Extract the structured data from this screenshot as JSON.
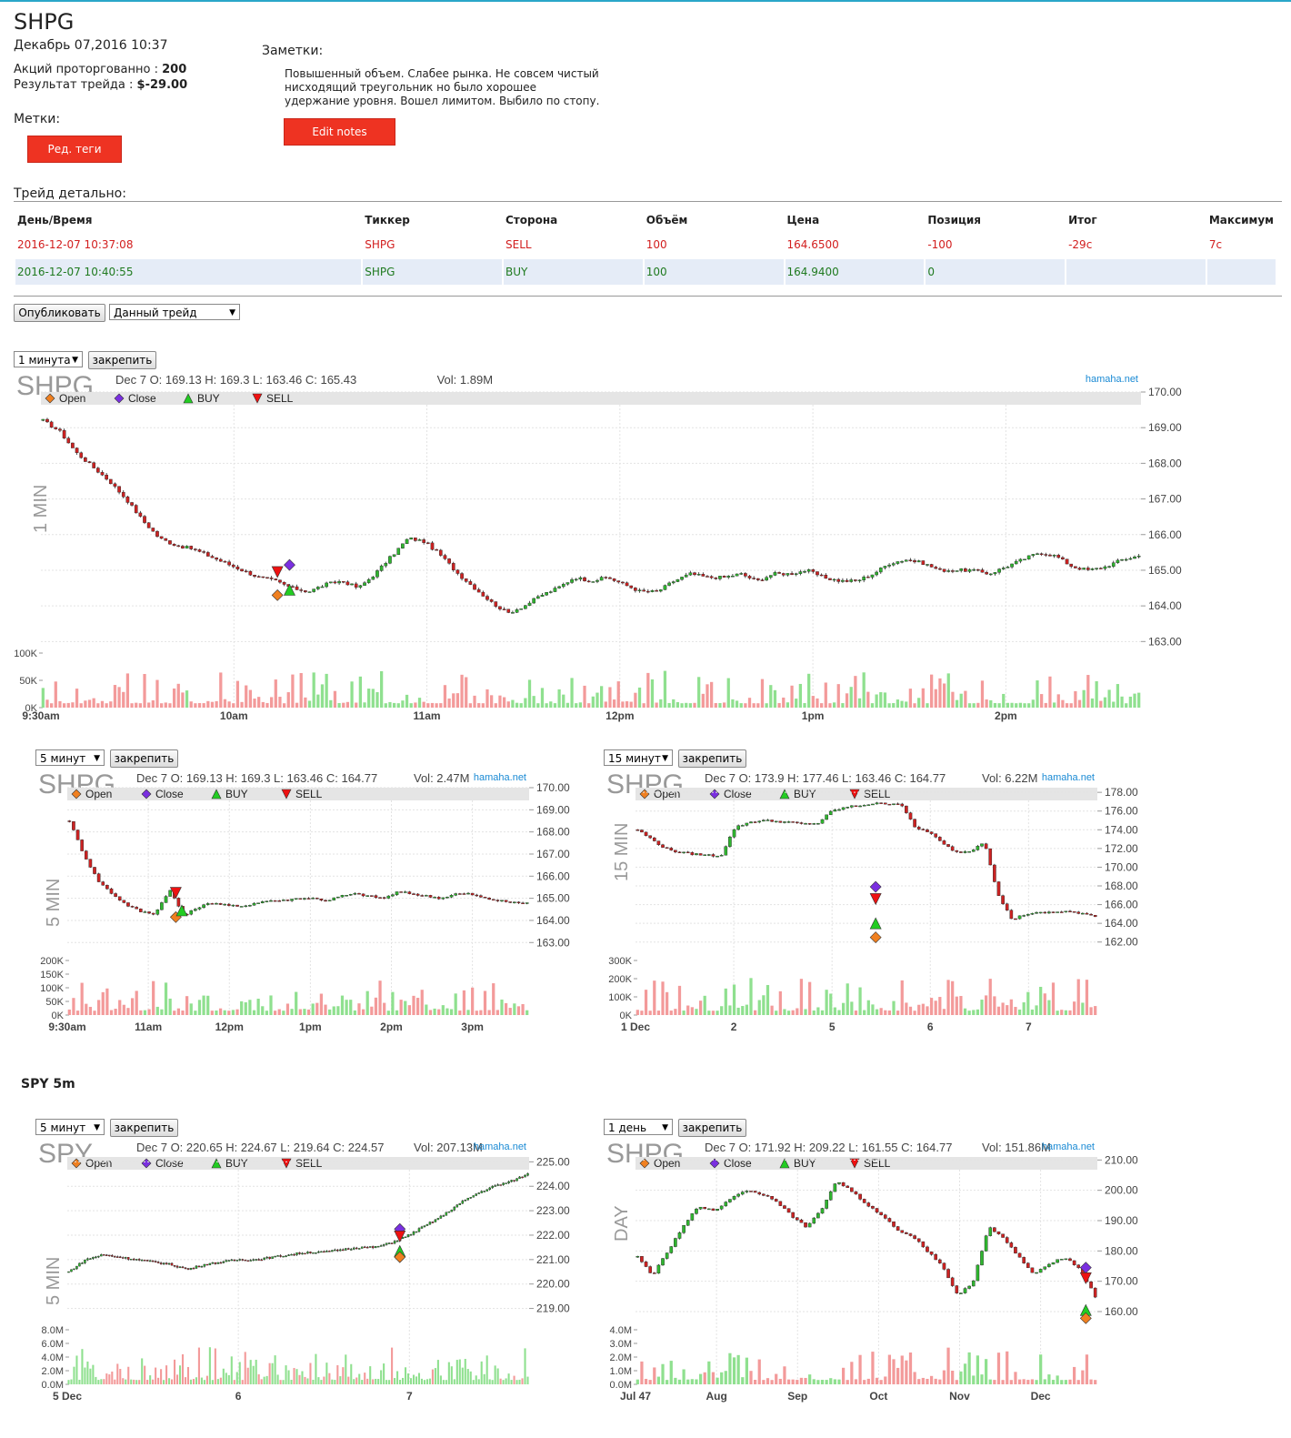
{
  "header": {
    "ticker": "SHPG",
    "datetime": "Декабрь 07,2016 10:37",
    "shares_label": "Акций проторгованно :",
    "shares_value": "200",
    "result_label": "Результат трейда :",
    "result_value": "$-29.00",
    "tags_label": "Метки:",
    "edit_tags_button": "Ред. теги",
    "notes_label": "Заметки:",
    "notes_text": "Повышенный объем. Слабее рынка. Не совсем чистый нисходящий треугольник но было хорошее удержание уровня. Вошел лимитом. Выбило по стопу.",
    "edit_notes_button": "Edit notes"
  },
  "trade_details": {
    "title": "Трейд детально:",
    "columns": [
      "День/Время",
      "Тиккер",
      "Сторона",
      "Объём",
      "Цена",
      "Позиция",
      "Итог",
      "Максимум"
    ],
    "rows": [
      [
        "2016-12-07 10:37:08",
        "SHPG",
        "SELL",
        "100",
        "164.6500",
        "-100",
        "-29c",
        "7c"
      ],
      [
        "2016-12-07 10:40:55",
        "SHPG",
        "BUY",
        "100",
        "164.9400",
        "0",
        "",
        ""
      ]
    ]
  },
  "controls": {
    "publish_button": "Опубликовать",
    "scope_select": "Данный трейд",
    "pin_button": "закрепить"
  },
  "legend": [
    "Open",
    "Close",
    "BUY",
    "SELL"
  ],
  "brand": "hamaha.net",
  "spy_section_title": "SPY 5m",
  "colors": {
    "up": "#2fb52f",
    "down": "#cc2222",
    "vol_up": "#8fe08f",
    "vol_down": "#f39a9a",
    "open_marker": "#f08020",
    "close_marker": "#7a2fe0",
    "buy_marker": "#22cc22",
    "sell_marker": "#ee1111",
    "button_red": "#ee3322"
  },
  "charts": [
    {
      "id": "shpg-1m",
      "interval_select": "1 минута",
      "symbol": "SHPG",
      "info": "Dec 7 O: 169.13 H: 169.3 L: 163.46 C: 165.43",
      "vol": "Vol: 1.89M",
      "side_label": "1 MIN",
      "chart_data": {
        "type": "candlestick",
        "y_ticks": [
          "170.00",
          "169.00",
          "168.00",
          "167.00",
          "166.00",
          "165.00",
          "164.00",
          "163.00"
        ],
        "ylim": [
          162.6,
          170.0
        ],
        "x_labels": [
          "9:30am",
          "10am",
          "11am",
          "12pm",
          "1pm",
          "2pm"
        ],
        "vol_ticks": [
          "100K",
          "50K",
          "0K"
        ],
        "close_path": [
          169.2,
          168.9,
          168.3,
          167.9,
          167.5,
          167.0,
          166.4,
          165.9,
          165.7,
          165.6,
          165.4,
          165.2,
          165.0,
          164.8,
          164.7,
          164.5,
          164.4,
          164.6,
          164.7,
          164.5,
          164.9,
          165.4,
          165.9,
          165.8,
          165.4,
          164.9,
          164.5,
          164.1,
          163.8,
          164.0,
          164.3,
          164.5,
          164.8,
          164.7,
          164.8,
          164.6,
          164.4,
          164.4,
          164.7,
          164.9,
          164.8,
          164.8,
          164.9,
          164.7,
          164.9,
          164.9,
          165.0,
          164.8,
          164.7,
          164.7,
          164.9,
          165.2,
          165.3,
          165.2,
          165.0,
          165.0,
          165.0,
          164.9,
          165.1,
          165.3,
          165.5,
          165.4,
          165.1,
          165.0,
          165.1,
          165.3,
          165.4
        ],
        "markers": [
          {
            "type": "open",
            "x_frac": 0.215,
            "price": 164.3
          },
          {
            "type": "sell",
            "x_frac": 0.215,
            "price": 164.95
          },
          {
            "type": "close",
            "x_frac": 0.226,
            "price": 165.15
          },
          {
            "type": "buy",
            "x_frac": 0.226,
            "price": 164.45
          }
        ]
      }
    },
    {
      "id": "shpg-5m",
      "interval_select": "5 минут",
      "symbol": "SHPG",
      "info": "Dec 7 O: 169.13 H: 169.3 L: 163.46 C: 164.77",
      "vol": "Vol: 2.47M",
      "side_label": "5 MIN",
      "chart_data": {
        "type": "candlestick",
        "y_ticks": [
          "170.00",
          "169.00",
          "168.00",
          "167.00",
          "166.00",
          "165.00",
          "164.00",
          "163.00"
        ],
        "ylim": [
          162.6,
          170.0
        ],
        "x_labels": [
          "9:30am",
          "11am",
          "12pm",
          "1pm",
          "2pm",
          "3pm"
        ],
        "vol_ticks": [
          "200K",
          "150K",
          "100K",
          "50K",
          "0K"
        ],
        "close_path": [
          168.5,
          167.0,
          165.8,
          165.2,
          164.7,
          164.4,
          164.3,
          165.4,
          164.2,
          164.6,
          164.8,
          164.7,
          164.6,
          164.8,
          164.9,
          164.9,
          165.0,
          165.0,
          164.9,
          165.1,
          165.2,
          165.1,
          165.0,
          165.3,
          165.2,
          165.1,
          165.0,
          165.2,
          165.2,
          165.0,
          164.9,
          164.8,
          164.8
        ],
        "markers": [
          {
            "type": "open",
            "x_frac": 0.235,
            "price": 164.15
          },
          {
            "type": "sell",
            "x_frac": 0.235,
            "price": 165.25
          },
          {
            "type": "buy",
            "x_frac": 0.248,
            "price": 164.45
          }
        ]
      }
    },
    {
      "id": "shpg-15m",
      "interval_select": "15 минут",
      "symbol": "SHPG",
      "info": "Dec 7 O: 173.9 H: 177.46 L: 163.46 C: 164.77",
      "vol": "Vol: 6.22M",
      "side_label": "15 MIN",
      "chart_data": {
        "type": "candlestick",
        "y_ticks": [
          "178.00",
          "176.00",
          "174.00",
          "172.00",
          "170.00",
          "168.00",
          "166.00",
          "164.00",
          "162.00"
        ],
        "ylim": [
          161.0,
          178.5
        ],
        "x_labels": [
          "1 Dec",
          "2",
          "5",
          "6",
          "7"
        ],
        "vol_ticks": [
          "300K",
          "200K",
          "100K",
          "0K"
        ],
        "close_path": [
          174.0,
          173.0,
          172.0,
          171.6,
          171.4,
          171.3,
          171.2,
          174.2,
          174.8,
          175.0,
          174.9,
          174.8,
          174.6,
          174.7,
          176.0,
          176.4,
          176.6,
          176.8,
          176.8,
          176.8,
          174.2,
          173.8,
          172.5,
          171.6,
          171.7,
          172.8,
          167.0,
          164.4,
          165.0,
          165.1,
          165.2,
          165.3,
          165.0,
          164.8
        ],
        "markers": [
          {
            "type": "close",
            "x_frac": 0.52,
            "price": 167.9
          },
          {
            "type": "sell",
            "x_frac": 0.52,
            "price": 166.6
          },
          {
            "type": "buy",
            "x_frac": 0.52,
            "price": 164.0
          },
          {
            "type": "open",
            "x_frac": 0.52,
            "price": 162.5
          }
        ]
      }
    },
    {
      "id": "spy-5m",
      "interval_select": "5 минут",
      "symbol": "SPY",
      "info": "Dec 7 O: 220.65 H: 224.67 L: 219.64 C: 224.57",
      "vol": "Vol: 207.13M",
      "side_label": "5 MIN",
      "chart_data": {
        "type": "candlestick",
        "y_ticks": [
          "225.00",
          "224.00",
          "223.00",
          "222.00",
          "221.00",
          "220.00",
          "219.00"
        ],
        "ylim": [
          218.5,
          225.2
        ],
        "x_labels": [
          "5 Dec",
          "6",
          "7"
        ],
        "vol_ticks": [
          "8.0M",
          "6.0M",
          "4.0M",
          "2.0M",
          "0.0M"
        ],
        "close_path": [
          220.5,
          221.0,
          221.2,
          221.1,
          221.0,
          220.9,
          220.8,
          220.6,
          220.8,
          220.9,
          221.0,
          221.0,
          221.1,
          221.2,
          221.3,
          221.3,
          221.4,
          221.5,
          221.5,
          221.7,
          222.0,
          222.4,
          222.8,
          223.3,
          223.7,
          224.0,
          224.2,
          224.5
        ],
        "markers": [
          {
            "type": "close",
            "x_frac": 0.72,
            "price": 222.25
          },
          {
            "type": "sell",
            "x_frac": 0.72,
            "price": 221.95
          },
          {
            "type": "buy",
            "x_frac": 0.72,
            "price": 221.35
          },
          {
            "type": "open",
            "x_frac": 0.72,
            "price": 221.1
          }
        ]
      }
    },
    {
      "id": "shpg-day",
      "interval_select": "1 день",
      "symbol": "SHPG",
      "info": "Dec 7 O: 171.92 H: 209.22 L: 161.55 C: 164.77",
      "vol": "Vol: 151.86M",
      "side_label": "DAY",
      "chart_data": {
        "type": "candlestick",
        "y_ticks": [
          "210.00",
          "200.00",
          "190.00",
          "180.00",
          "170.00",
          "160.00"
        ],
        "ylim": [
          157.0,
          211.0
        ],
        "x_labels": [
          "Jul 47",
          "Aug",
          "Sep",
          "Oct",
          "Nov",
          "Dec"
        ],
        "vol_ticks": [
          "4.0M",
          "3.0M",
          "2.0M",
          "1.0M",
          "0.0M"
        ],
        "close_path": [
          178.0,
          172.0,
          180.0,
          188.0,
          195.0,
          193.0,
          197.0,
          200.0,
          199.0,
          197.0,
          192.0,
          188.0,
          193.0,
          203.0,
          200.0,
          195.0,
          192.0,
          187.0,
          185.0,
          180.0,
          175.0,
          165.0,
          170.0,
          188.0,
          184.0,
          178.0,
          172.0,
          176.0,
          178.0,
          174.0,
          165.0
        ],
        "markers": [
          {
            "type": "close",
            "x_frac": 0.975,
            "price": 174.5
          },
          {
            "type": "sell",
            "x_frac": 0.975,
            "price": 171.0
          },
          {
            "type": "buy",
            "x_frac": 0.975,
            "price": 160.5
          },
          {
            "type": "open",
            "x_frac": 0.975,
            "price": 157.8
          }
        ]
      }
    }
  ]
}
